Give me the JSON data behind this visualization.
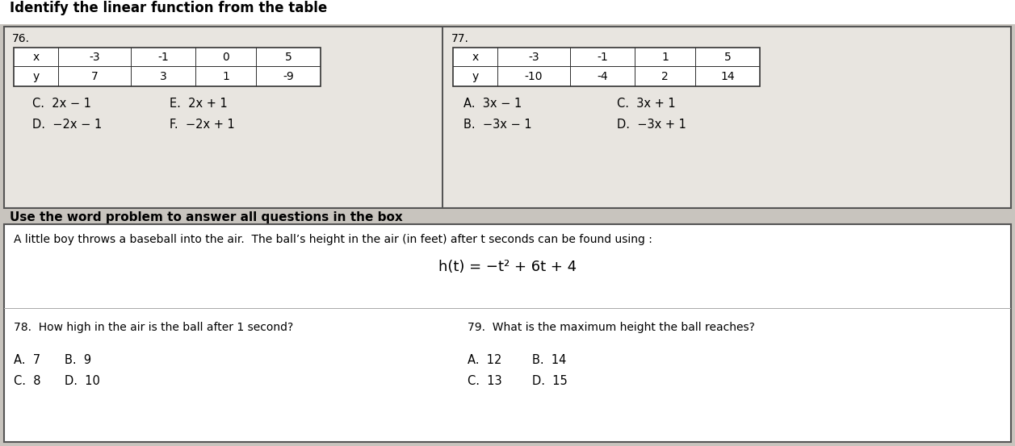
{
  "title": "Identify the linear function from the table",
  "page_bg": "#c8c4be",
  "box_bg": "#e8e5e0",
  "white": "#ffffff",
  "dark": "#222222",
  "q76_label": "76.",
  "q77_label": "77.",
  "table76_x": [
    "x",
    "-3",
    "-1",
    "0",
    "5"
  ],
  "table76_y": [
    "y",
    "7",
    "3",
    "1",
    "-9"
  ],
  "table77_x": [
    "x",
    "-3",
    "-1",
    "1",
    "5"
  ],
  "table77_y": [
    "y",
    "-10",
    "-4",
    "2",
    "14"
  ],
  "opt76_row1": [
    "C.  2x − 1",
    "E.  2x + 1"
  ],
  "opt76_row2": [
    "D.  −2x − 1",
    "F.  −2x + 1"
  ],
  "opt77_row1": [
    "A.  3x − 1",
    "C.  3x + 1"
  ],
  "opt77_row2": [
    "B.  −3x − 1",
    "D.  −3x + 1"
  ],
  "word_hdr": "Use the word problem to answer all questions in the box",
  "story": "A little boy throws a baseball into the air.  The ball’s height in the air (in feet) after t seconds can be found using :",
  "formula": "h(t) = −t² + 6t + 4",
  "q78": "78.  How high in the air is the ball after 1 second?",
  "q79": "79.  What is the maximum height the ball reaches?",
  "q78_a": "A.  7",
  "q78_b": "B.  9",
  "q78_c": "C.  8",
  "q78_d": "D.  10",
  "q79_a": "A.  12",
  "q79_b": "B.  14",
  "q79_c": "C.  13",
  "q79_d": "D.  15"
}
